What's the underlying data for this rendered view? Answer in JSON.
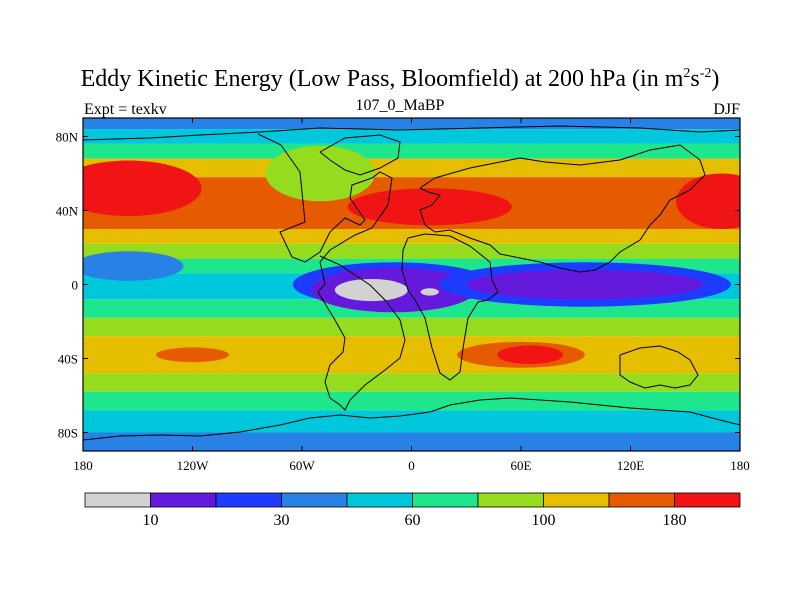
{
  "chart_data": {
    "type": "heatmap",
    "title_main": "Eddy Kinetic Energy (Low Pass, Bloomfield) at 200 hPa (in m",
    "title_sup1": "2",
    "title_mid": "s",
    "title_sup2": "-2",
    "title_end": ")",
    "subtitle_left": "Expt = texkv",
    "subtitle_center": "107_0_MaBP",
    "subtitle_right": "DJF",
    "x_ticks": [
      "180",
      "120W",
      "60W",
      "0",
      "60E",
      "120E",
      "180"
    ],
    "y_ticks": [
      "80N",
      "40N",
      "0",
      "40S",
      "80S"
    ],
    "x_range": [
      -180,
      180
    ],
    "y_range": [
      -90,
      90
    ],
    "colorbar": {
      "colors": [
        "#d2d2d2",
        "#6419dc",
        "#1e3cff",
        "#2882e6",
        "#00c8dc",
        "#1ee68c",
        "#96dc1e",
        "#e6be00",
        "#e65a00",
        "#f01414"
      ],
      "labels": [
        "10",
        "30",
        "60",
        "100",
        "180"
      ],
      "label_boundaries": [
        1,
        3,
        5,
        7,
        9
      ]
    },
    "zonal_bands": [
      {
        "lat_top": 90,
        "lat_bottom": 84,
        "level": 3
      },
      {
        "lat_top": 84,
        "lat_bottom": 76,
        "level": 4
      },
      {
        "lat_top": 76,
        "lat_bottom": 68,
        "level": 5
      },
      {
        "lat_top": 68,
        "lat_bottom": 58,
        "level": 7
      },
      {
        "lat_top": 58,
        "lat_bottom": 50,
        "level": 8
      },
      {
        "lat_top": 50,
        "lat_bottom": 30,
        "level": 8
      },
      {
        "lat_top": 30,
        "lat_bottom": 22,
        "level": 7
      },
      {
        "lat_top": 22,
        "lat_bottom": 14,
        "level": 6
      },
      {
        "lat_top": 14,
        "lat_bottom": 6,
        "level": 5
      },
      {
        "lat_top": 6,
        "lat_bottom": -8,
        "level": 4
      },
      {
        "lat_top": -8,
        "lat_bottom": -18,
        "level": 5
      },
      {
        "lat_top": -18,
        "lat_bottom": -28,
        "level": 6
      },
      {
        "lat_top": -28,
        "lat_bottom": -48,
        "level": 7
      },
      {
        "lat_top": -48,
        "lat_bottom": -58,
        "level": 6
      },
      {
        "lat_top": -58,
        "lat_bottom": -68,
        "level": 5
      },
      {
        "lat_top": -68,
        "lat_bottom": -80,
        "level": 4
      },
      {
        "lat_top": -80,
        "lat_bottom": -90,
        "level": 3
      }
    ],
    "features": [
      {
        "lon": -155,
        "lat": 52,
        "rx": 40,
        "ry": 15,
        "level": 9
      },
      {
        "lon": 170,
        "lat": 45,
        "rx": 25,
        "ry": 15,
        "level": 9
      },
      {
        "lon": 10,
        "lat": 42,
        "rx": 45,
        "ry": 10,
        "level": 9
      },
      {
        "lon": -50,
        "lat": 60,
        "rx": 30,
        "ry": 15,
        "level": 6
      },
      {
        "lon": -155,
        "lat": 10,
        "rx": 30,
        "ry": 8,
        "level": 3
      },
      {
        "lon": -10,
        "lat": 0,
        "rx": 55,
        "ry": 12,
        "level": 2
      },
      {
        "lon": -10,
        "lat": -3,
        "rx": 45,
        "ry": 12,
        "level": 1
      },
      {
        "lon": -22,
        "lat": -3,
        "rx": 20,
        "ry": 6,
        "level": 0
      },
      {
        "lon": 10,
        "lat": -4,
        "rx": 5,
        "ry": 2,
        "level": 0
      },
      {
        "lon": 95,
        "lat": 0,
        "rx": 80,
        "ry": 12,
        "level": 2
      },
      {
        "lon": 95,
        "lat": 0,
        "rx": 65,
        "ry": 8,
        "level": 1
      },
      {
        "lon": 60,
        "lat": -38,
        "rx": 35,
        "ry": 7,
        "level": 8
      },
      {
        "lon": 65,
        "lat": -38,
        "rx": 18,
        "ry": 5,
        "level": 9
      },
      {
        "lon": -120,
        "lat": -38,
        "rx": 20,
        "ry": 4,
        "level": 8
      }
    ]
  }
}
